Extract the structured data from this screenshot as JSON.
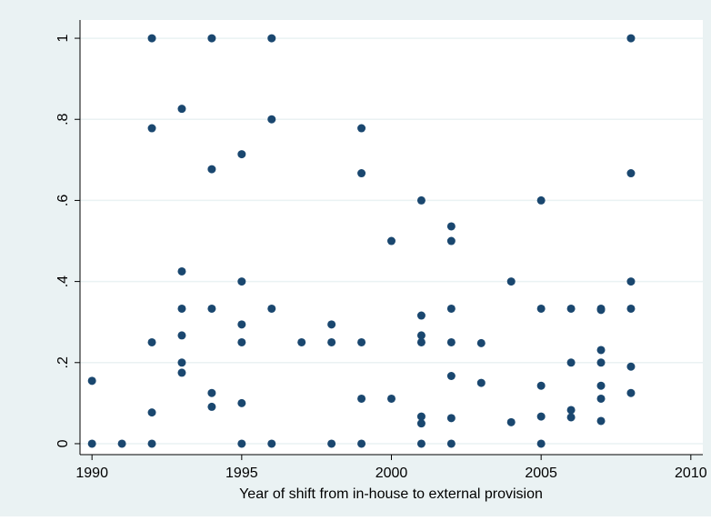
{
  "chart_data": {
    "type": "scatter",
    "x_label": "Year of shift from in-house to external provision",
    "color": "#1a476f",
    "x": [
      1990,
      1990,
      1991,
      1992,
      1992,
      1992,
      1992,
      1992,
      1993,
      1993,
      1993,
      1993,
      1993,
      1993,
      1994,
      1994,
      1994,
      1994,
      1994,
      1995,
      1995,
      1995,
      1995,
      1995,
      1995,
      1996,
      1996,
      1996,
      1996,
      1997,
      1998,
      1998,
      1998,
      1999,
      1999,
      1999,
      1999,
      1999,
      2000,
      2000,
      2001,
      2001,
      2001,
      2001,
      2001,
      2001,
      2001,
      2002,
      2002,
      2002,
      2002,
      2002,
      2002,
      2002,
      2003,
      2003,
      2004,
      2004,
      2005,
      2005,
      2005,
      2005,
      2005,
      2006,
      2006,
      2006,
      2006,
      2007,
      2007,
      2007,
      2007,
      2007,
      2007,
      2007,
      2008,
      2008,
      2008,
      2008,
      2008,
      2008
    ],
    "y": [
      0.155,
      0,
      0,
      1,
      0.778,
      0.25,
      0.077,
      0,
      0.826,
      0.425,
      0.333,
      0.267,
      0.2,
      0.175,
      1,
      0.677,
      0.333,
      0.125,
      0.091,
      0.714,
      0.4,
      0.294,
      0.25,
      0.1,
      0,
      1,
      0.8,
      0.333,
      0,
      0.25,
      0.294,
      0.25,
      0,
      0.778,
      0.667,
      0.25,
      0.111,
      0,
      0.5,
      0.111,
      0.6,
      0.316,
      0.267,
      0.25,
      0.067,
      0.05,
      0,
      0.536,
      0.5,
      0.333,
      0.25,
      0.167,
      0.063,
      0,
      0.248,
      0.15,
      0.4,
      0.053,
      0.6,
      0.333,
      0.143,
      0.067,
      0,
      0.333,
      0.2,
      0.083,
      0.065,
      0.333,
      0.33,
      0.231,
      0.2,
      0.143,
      0.111,
      0.056,
      1,
      0.667,
      0.4,
      0.333,
      0.19,
      0.125
    ],
    "xlim": [
      1989.6,
      2010.4
    ],
    "ylim": [
      -0.027,
      1.045
    ],
    "xticks": [
      1990,
      1995,
      2000,
      2005,
      2010
    ],
    "yticks": [
      0,
      {
        "value": 0.2,
        "label": ".2"
      },
      {
        "value": 0.4,
        "label": ".4"
      },
      {
        "value": 0.6,
        "label": ".6"
      },
      {
        "value": 0.8,
        "label": ".8"
      },
      1
    ],
    "grid": true
  }
}
